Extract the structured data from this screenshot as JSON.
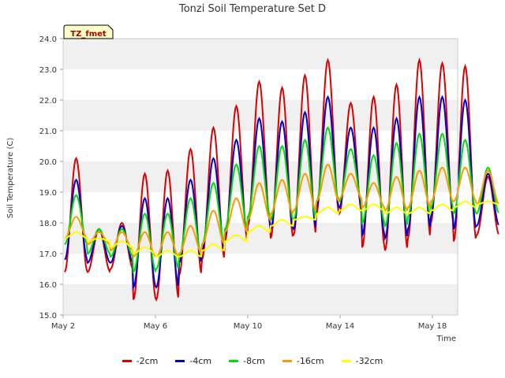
{
  "chart_data": {
    "type": "line",
    "title": "Tonzi Soil Temperature Set D",
    "xlabel": "Time",
    "ylabel": "Soil Temperature (C)",
    "ylim": [
      15.0,
      24.0
    ],
    "xlim_days": [
      "May 2",
      "May 21"
    ],
    "y_ticks": [
      "15.0",
      "16.0",
      "17.0",
      "18.0",
      "19.0",
      "20.0",
      "21.0",
      "22.0",
      "23.0",
      "24.0"
    ],
    "x_ticks": [
      "May 2",
      "May 6",
      "May 10",
      "May 14",
      "May 18"
    ],
    "annotation": "TZ_fmet",
    "grid": "horizontal bands",
    "legend_position": "bottom",
    "series": [
      {
        "name": "-2cm",
        "color": "#dd0000",
        "daily_min": [
          16.4,
          16.4,
          16.5,
          15.5,
          15.5,
          16.3,
          16.8,
          17.4,
          17.9,
          17.5,
          17.6,
          18.3,
          18.3,
          17.2,
          17.1,
          17.5,
          18.0,
          17.4,
          17.6
        ],
        "daily_max": [
          20.1,
          17.8,
          18.0,
          19.6,
          19.7,
          20.4,
          21.1,
          21.8,
          22.6,
          22.4,
          22.8,
          23.3,
          21.9,
          22.1,
          22.5,
          23.3,
          23.2,
          23.1,
          19.5
        ]
      },
      {
        "name": "-4cm",
        "color": "#0000cc",
        "daily_min": [
          16.8,
          16.7,
          16.7,
          15.9,
          15.9,
          16.7,
          17.1,
          17.6,
          18.0,
          17.8,
          17.8,
          18.5,
          18.5,
          17.6,
          17.5,
          17.8,
          18.2,
          17.8,
          17.9
        ],
        "daily_max": [
          19.4,
          17.8,
          17.9,
          18.8,
          18.8,
          19.4,
          20.1,
          20.7,
          21.4,
          21.3,
          21.6,
          22.1,
          21.1,
          21.1,
          21.4,
          22.1,
          22.1,
          22.0,
          19.6
        ]
      },
      {
        "name": "-8cm",
        "color": "#00dd00",
        "daily_min": [
          17.3,
          17.0,
          16.9,
          16.4,
          16.5,
          16.9,
          17.3,
          17.8,
          18.2,
          18.1,
          18.1,
          18.7,
          18.7,
          18.0,
          17.9,
          18.2,
          18.5,
          18.3,
          18.3
        ],
        "daily_max": [
          18.9,
          17.8,
          17.8,
          18.3,
          18.3,
          18.8,
          19.3,
          19.9,
          20.5,
          20.5,
          20.7,
          21.1,
          20.4,
          20.2,
          20.6,
          20.9,
          20.9,
          20.7,
          19.8
        ]
      },
      {
        "name": "-16cm",
        "color": "#ff9900",
        "daily_min": [
          17.5,
          17.3,
          17.1,
          16.9,
          16.9,
          17.0,
          17.3,
          17.7,
          18.1,
          18.3,
          18.4,
          18.7,
          18.8,
          18.5,
          18.4,
          18.5,
          18.7,
          18.7,
          18.6
        ],
        "daily_max": [
          18.2,
          17.7,
          17.7,
          17.7,
          17.7,
          17.9,
          18.4,
          18.8,
          19.3,
          19.4,
          19.6,
          19.9,
          19.6,
          19.3,
          19.5,
          19.7,
          19.8,
          19.8,
          19.7
        ]
      },
      {
        "name": "-32cm",
        "color": "#ffff00",
        "daily_min": [
          17.5,
          17.4,
          17.2,
          17.0,
          16.9,
          16.9,
          17.1,
          17.4,
          17.7,
          17.9,
          18.1,
          18.3,
          18.4,
          18.4,
          18.3,
          18.3,
          18.4,
          18.5,
          18.6
        ],
        "daily_max": [
          17.7,
          17.5,
          17.4,
          17.2,
          17.1,
          17.1,
          17.3,
          17.6,
          17.9,
          18.1,
          18.2,
          18.5,
          18.6,
          18.6,
          18.5,
          18.5,
          18.6,
          18.7,
          18.7
        ]
      }
    ]
  }
}
